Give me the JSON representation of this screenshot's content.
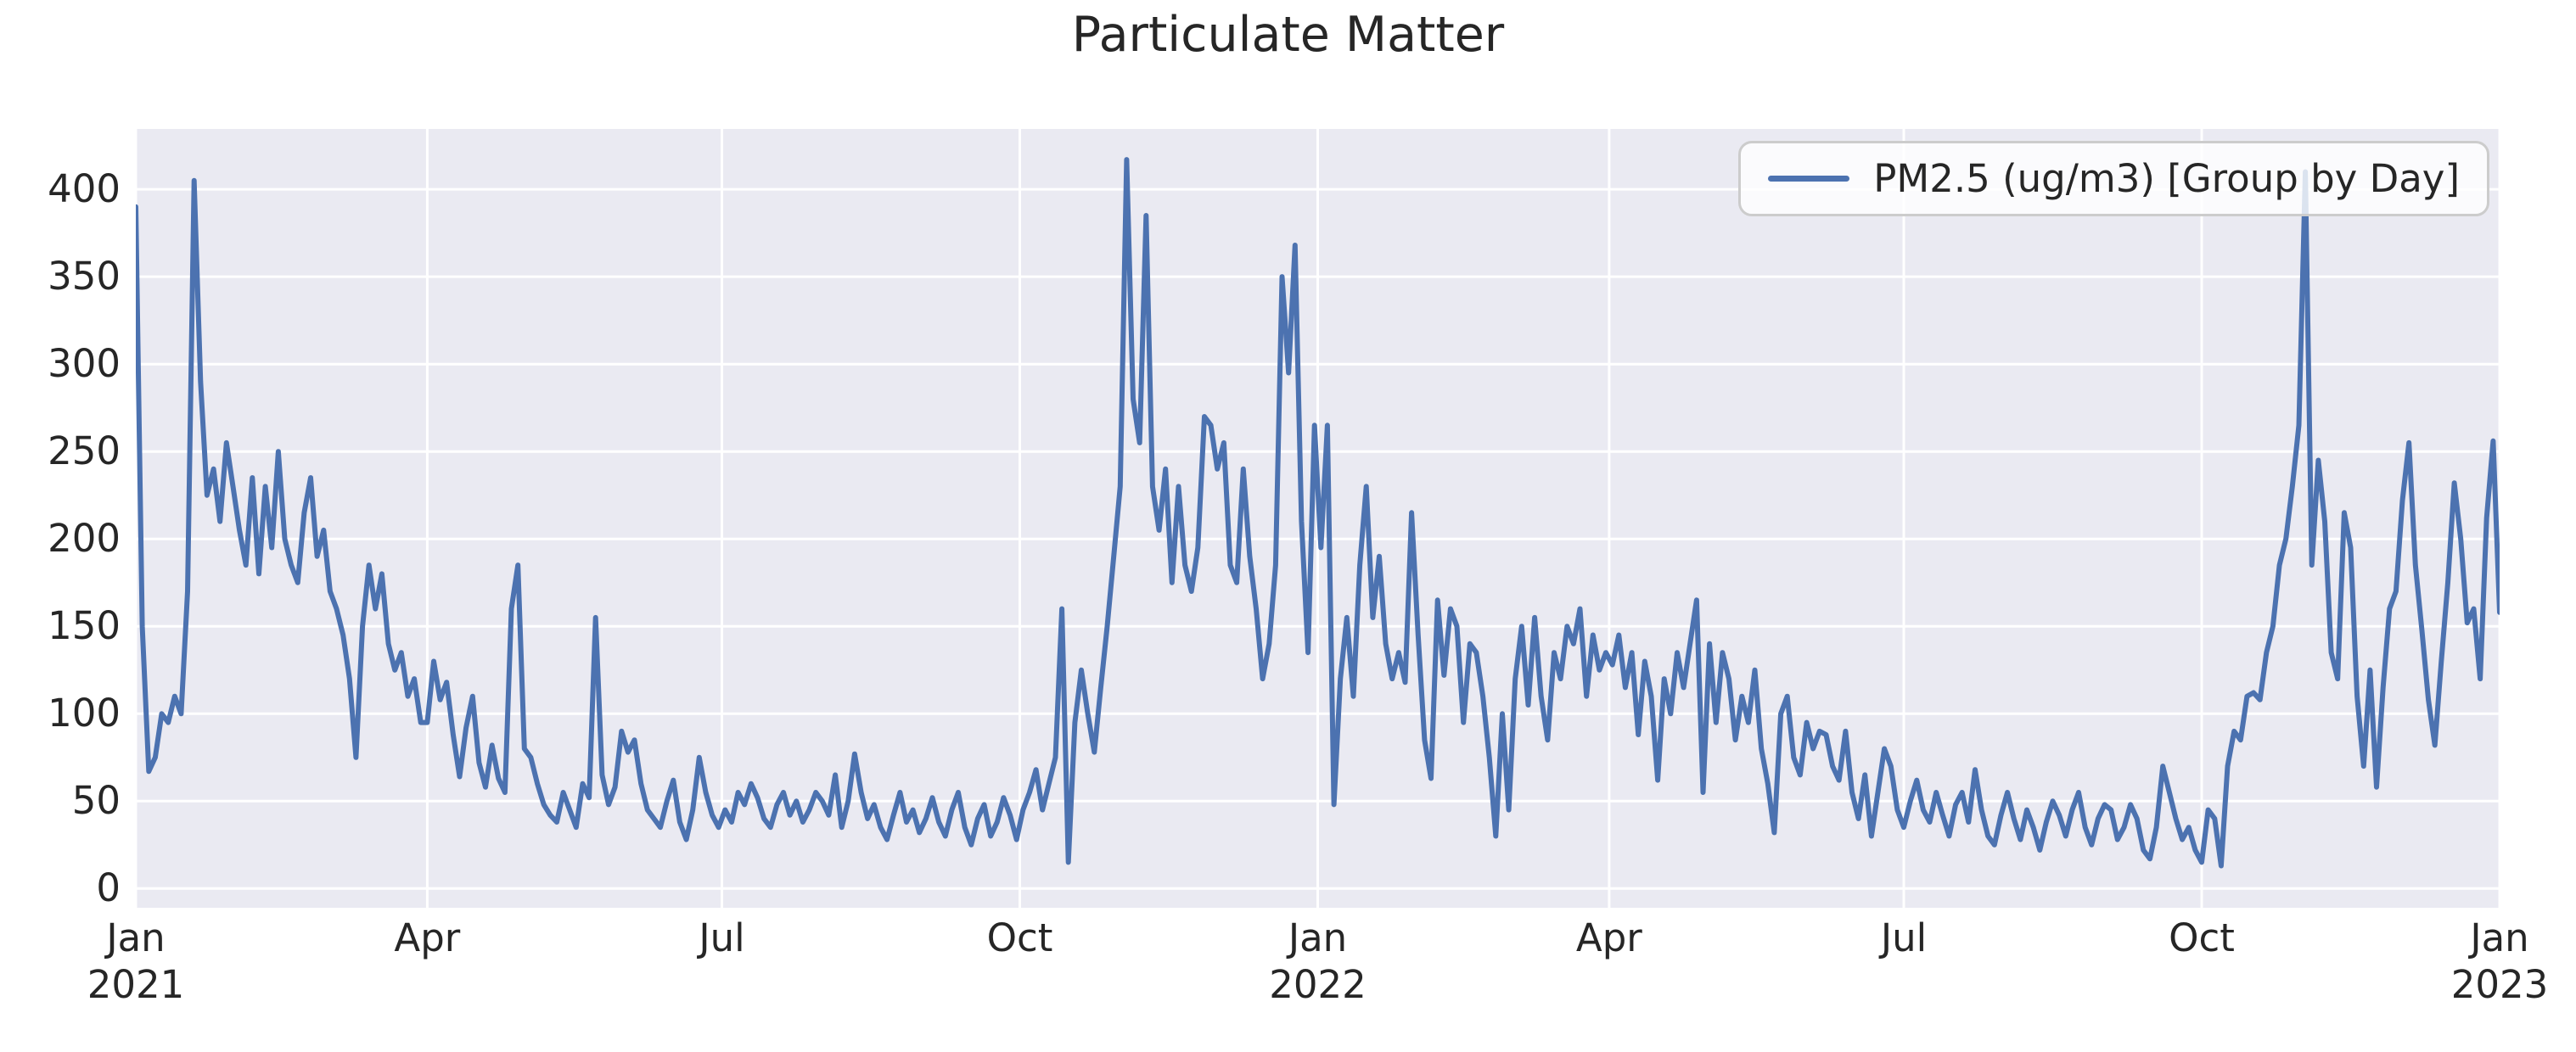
{
  "chart_data": {
    "type": "line",
    "title": "Particulate Matter",
    "series_name": "PM2.5 (ug/m3) [Group by Day]",
    "xlabel": "",
    "ylabel": "",
    "grid": true,
    "legend_position": "upper right",
    "style": {
      "line_color": "#4c72b0",
      "plot_bg": "#eaeaf2",
      "grid_color": "#ffffff",
      "text_color": "#262626",
      "legend_border": "#cccccc"
    },
    "x_axis": {
      "unit": "days since 2021-01-01",
      "lim": [
        0,
        730
      ],
      "ticks": [
        {
          "day": 0,
          "label": "Jan",
          "year": "2021"
        },
        {
          "day": 90,
          "label": "Apr",
          "year": ""
        },
        {
          "day": 181,
          "label": "Jul",
          "year": ""
        },
        {
          "day": 273,
          "label": "Oct",
          "year": ""
        },
        {
          "day": 365,
          "label": "Jan",
          "year": "2022"
        },
        {
          "day": 455,
          "label": "Apr",
          "year": ""
        },
        {
          "day": 546,
          "label": "Jul",
          "year": ""
        },
        {
          "day": 638,
          "label": "Oct",
          "year": ""
        },
        {
          "day": 730,
          "label": "Jan",
          "year": "2023"
        }
      ]
    },
    "y_axis": {
      "lim": [
        -11,
        434.5
      ],
      "ticks": [
        0,
        50,
        100,
        150,
        200,
        250,
        300,
        350,
        400
      ]
    },
    "sampling_note": "daily PM2.5 series read from plot at 2-day resolution",
    "day_step": 2,
    "values": [
      390,
      150,
      67,
      75,
      100,
      95,
      110,
      100,
      170,
      405,
      290,
      225,
      240,
      210,
      255,
      230,
      205,
      185,
      235,
      180,
      230,
      195,
      250,
      200,
      185,
      175,
      215,
      235,
      190,
      205,
      170,
      160,
      145,
      120,
      75,
      150,
      185,
      160,
      180,
      140,
      125,
      135,
      110,
      120,
      95,
      95,
      130,
      108,
      118,
      88,
      64,
      92,
      110,
      72,
      58,
      82,
      63,
      55,
      160,
      185,
      80,
      75,
      60,
      48,
      42,
      38,
      55,
      45,
      35,
      60,
      52,
      155,
      65,
      48,
      58,
      90,
      78,
      85,
      60,
      45,
      40,
      35,
      50,
      62,
      38,
      28,
      45,
      75,
      55,
      42,
      35,
      45,
      38,
      55,
      48,
      60,
      52,
      40,
      35,
      48,
      55,
      42,
      50,
      38,
      45,
      55,
      50,
      42,
      65,
      35,
      50,
      77,
      55,
      40,
      48,
      35,
      28,
      42,
      55,
      38,
      45,
      32,
      40,
      52,
      38,
      30,
      45,
      55,
      35,
      25,
      40,
      48,
      30,
      38,
      52,
      42,
      28,
      45,
      55,
      68,
      45,
      60,
      75,
      160,
      15,
      95,
      125,
      100,
      78,
      115,
      150,
      190,
      230,
      417,
      280,
      255,
      385,
      230,
      205,
      240,
      175,
      230,
      185,
      170,
      195,
      270,
      265,
      240,
      255,
      185,
      175,
      240,
      190,
      160,
      120,
      140,
      185,
      350,
      295,
      368,
      210,
      135,
      265,
      195,
      265,
      48,
      120,
      155,
      110,
      185,
      230,
      155,
      190,
      140,
      120,
      135,
      118,
      215,
      145,
      85,
      63,
      165,
      122,
      160,
      150,
      95,
      140,
      135,
      110,
      75,
      30,
      100,
      45,
      120,
      150,
      105,
      155,
      110,
      85,
      135,
      120,
      150,
      140,
      160,
      110,
      145,
      125,
      135,
      128,
      145,
      115,
      135,
      88,
      130,
      110,
      62,
      120,
      100,
      135,
      115,
      140,
      165,
      55,
      140,
      95,
      135,
      120,
      85,
      110,
      95,
      125,
      80,
      60,
      32,
      100,
      110,
      75,
      65,
      95,
      80,
      90,
      88,
      70,
      62,
      90,
      55,
      40,
      65,
      30,
      55,
      80,
      70,
      45,
      35,
      50,
      62,
      45,
      38,
      55,
      42,
      30,
      48,
      55,
      38,
      68,
      45,
      30,
      25,
      42,
      55,
      40,
      28,
      45,
      35,
      22,
      38,
      50,
      42,
      30,
      45,
      55,
      35,
      25,
      40,
      48,
      45,
      28,
      35,
      48,
      40,
      22,
      17,
      35,
      70,
      55,
      40,
      28,
      35,
      22,
      15,
      45,
      40,
      13,
      70,
      90,
      85,
      110,
      112,
      108,
      135,
      150,
      185,
      200,
      230,
      265,
      410,
      185,
      245,
      210,
      135,
      120,
      215,
      195,
      110,
      70,
      125,
      58,
      115,
      160,
      170,
      222,
      255,
      185,
      148,
      108,
      82,
      130,
      175,
      232,
      200,
      152,
      160,
      120,
      212,
      256,
      158
    ]
  }
}
